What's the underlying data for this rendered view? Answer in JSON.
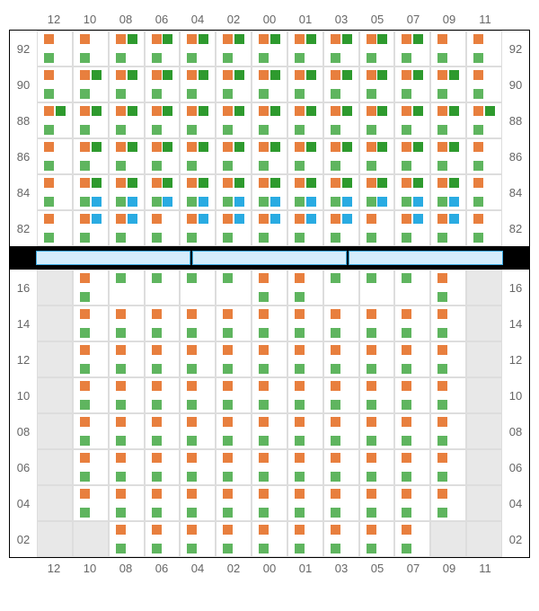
{
  "colors": {
    "orange": "#e87f3e",
    "green": "#5fb55f",
    "darkgreen": "#2e9a2e",
    "blue": "#29abe2",
    "cell_border": "#dddddd",
    "section_border": "#000000",
    "empty_bg": "#e8e8e8",
    "separator_fill": "#d4edfc",
    "separator_border": "#3ba9e0",
    "label_color": "#666666"
  },
  "column_labels": [
    "12",
    "10",
    "08",
    "06",
    "04",
    "02",
    "00",
    "01",
    "03",
    "05",
    "07",
    "09",
    "11"
  ],
  "top_section": {
    "row_labels": [
      "92",
      "90",
      "88",
      "86",
      "84",
      "82"
    ],
    "rows": [
      [
        {
          "tl": "orange",
          "bl": "green"
        },
        {
          "tl": "orange",
          "bl": "green"
        },
        {
          "tl": "orange",
          "tr": "darkgreen",
          "bl": "green"
        },
        {
          "tl": "orange",
          "tr": "darkgreen",
          "bl": "green"
        },
        {
          "tl": "orange",
          "tr": "darkgreen",
          "bl": "green"
        },
        {
          "tl": "orange",
          "tr": "darkgreen",
          "bl": "green"
        },
        {
          "tl": "orange",
          "tr": "darkgreen",
          "bl": "green"
        },
        {
          "tl": "orange",
          "tr": "darkgreen",
          "bl": "green"
        },
        {
          "tl": "orange",
          "tr": "darkgreen",
          "bl": "green"
        },
        {
          "tl": "orange",
          "tr": "darkgreen",
          "bl": "green"
        },
        {
          "tl": "orange",
          "tr": "darkgreen",
          "bl": "green"
        },
        {
          "tl": "orange",
          "bl": "green"
        },
        {
          "tl": "orange",
          "bl": "green"
        }
      ],
      [
        {
          "tl": "orange",
          "bl": "green"
        },
        {
          "tl": "orange",
          "tr": "darkgreen",
          "bl": "green"
        },
        {
          "tl": "orange",
          "tr": "darkgreen",
          "bl": "green"
        },
        {
          "tl": "orange",
          "tr": "darkgreen",
          "bl": "green"
        },
        {
          "tl": "orange",
          "tr": "darkgreen",
          "bl": "green"
        },
        {
          "tl": "orange",
          "tr": "darkgreen",
          "bl": "green"
        },
        {
          "tl": "orange",
          "tr": "darkgreen",
          "bl": "green"
        },
        {
          "tl": "orange",
          "tr": "darkgreen",
          "bl": "green"
        },
        {
          "tl": "orange",
          "tr": "darkgreen",
          "bl": "green"
        },
        {
          "tl": "orange",
          "tr": "darkgreen",
          "bl": "green"
        },
        {
          "tl": "orange",
          "tr": "darkgreen",
          "bl": "green"
        },
        {
          "tl": "orange",
          "tr": "darkgreen",
          "bl": "green"
        },
        {
          "tl": "orange",
          "bl": "green"
        }
      ],
      [
        {
          "tl": "orange",
          "tr": "darkgreen",
          "bl": "green"
        },
        {
          "tl": "orange",
          "tr": "darkgreen",
          "bl": "green"
        },
        {
          "tl": "orange",
          "tr": "darkgreen",
          "bl": "green"
        },
        {
          "tl": "orange",
          "tr": "darkgreen",
          "bl": "green"
        },
        {
          "tl": "orange",
          "tr": "darkgreen",
          "bl": "green"
        },
        {
          "tl": "orange",
          "tr": "darkgreen",
          "bl": "green"
        },
        {
          "tl": "orange",
          "tr": "darkgreen",
          "bl": "green"
        },
        {
          "tl": "orange",
          "tr": "darkgreen",
          "bl": "green"
        },
        {
          "tl": "orange",
          "tr": "darkgreen",
          "bl": "green"
        },
        {
          "tl": "orange",
          "tr": "darkgreen",
          "bl": "green"
        },
        {
          "tl": "orange",
          "tr": "darkgreen",
          "bl": "green"
        },
        {
          "tl": "orange",
          "tr": "darkgreen",
          "bl": "green"
        },
        {
          "tl": "orange",
          "tr": "darkgreen",
          "bl": "green"
        }
      ],
      [
        {
          "tl": "orange",
          "bl": "green"
        },
        {
          "tl": "orange",
          "tr": "darkgreen",
          "bl": "green"
        },
        {
          "tl": "orange",
          "tr": "darkgreen",
          "bl": "green"
        },
        {
          "tl": "orange",
          "tr": "darkgreen",
          "bl": "green"
        },
        {
          "tl": "orange",
          "tr": "darkgreen",
          "bl": "green"
        },
        {
          "tl": "orange",
          "tr": "darkgreen",
          "bl": "green"
        },
        {
          "tl": "orange",
          "tr": "darkgreen",
          "bl": "green"
        },
        {
          "tl": "orange",
          "tr": "darkgreen",
          "bl": "green"
        },
        {
          "tl": "orange",
          "tr": "darkgreen",
          "bl": "green"
        },
        {
          "tl": "orange",
          "tr": "darkgreen",
          "bl": "green"
        },
        {
          "tl": "orange",
          "tr": "darkgreen",
          "bl": "green"
        },
        {
          "tl": "orange",
          "tr": "darkgreen",
          "bl": "green"
        },
        {
          "tl": "orange",
          "bl": "green"
        }
      ],
      [
        {
          "tl": "orange",
          "bl": "green"
        },
        {
          "tl": "orange",
          "tr": "darkgreen",
          "bl": "green",
          "br": "blue"
        },
        {
          "tl": "orange",
          "tr": "darkgreen",
          "bl": "green",
          "br": "blue"
        },
        {
          "tl": "orange",
          "tr": "darkgreen",
          "bl": "green",
          "br": "blue"
        },
        {
          "tl": "orange",
          "tr": "darkgreen",
          "bl": "green",
          "br": "blue"
        },
        {
          "tl": "orange",
          "tr": "darkgreen",
          "bl": "green",
          "br": "blue"
        },
        {
          "tl": "orange",
          "tr": "darkgreen",
          "bl": "green",
          "br": "blue"
        },
        {
          "tl": "orange",
          "tr": "darkgreen",
          "bl": "green",
          "br": "blue"
        },
        {
          "tl": "orange",
          "tr": "darkgreen",
          "bl": "green",
          "br": "blue"
        },
        {
          "tl": "orange",
          "tr": "darkgreen",
          "bl": "green",
          "br": "blue"
        },
        {
          "tl": "orange",
          "tr": "darkgreen",
          "bl": "green",
          "br": "blue"
        },
        {
          "tl": "orange",
          "tr": "darkgreen",
          "bl": "green",
          "br": "blue"
        },
        {
          "tl": "orange",
          "bl": "green"
        }
      ],
      [
        {
          "tl": "orange",
          "bl": "green"
        },
        {
          "tl": "orange",
          "tr": "blue",
          "bl": "green"
        },
        {
          "tl": "orange",
          "tr": "blue",
          "bl": "green"
        },
        {
          "tl": "orange",
          "bl": "green"
        },
        {
          "tl": "orange",
          "tr": "blue",
          "bl": "green"
        },
        {
          "tl": "orange",
          "tr": "blue",
          "bl": "green"
        },
        {
          "tl": "orange",
          "tr": "blue",
          "bl": "green"
        },
        {
          "tl": "orange",
          "tr": "blue",
          "bl": "green"
        },
        {
          "tl": "orange",
          "tr": "blue",
          "bl": "green"
        },
        {
          "tl": "orange",
          "bl": "green"
        },
        {
          "tl": "orange",
          "tr": "blue",
          "bl": "green"
        },
        {
          "tl": "orange",
          "tr": "blue",
          "bl": "green"
        },
        {
          "tl": "orange",
          "bl": "green"
        }
      ]
    ]
  },
  "separator": {
    "segments": 3
  },
  "bottom_section": {
    "row_labels": [
      "16",
      "14",
      "12",
      "10",
      "08",
      "06",
      "04",
      "02"
    ],
    "rows": [
      [
        {
          "empty": true
        },
        {
          "tl": "orange",
          "bl": "green"
        },
        {
          "tl": "green"
        },
        {
          "tl": "green"
        },
        {
          "tl": "green"
        },
        {
          "tl": "green"
        },
        {
          "tl": "orange",
          "bl": "green"
        },
        {
          "tl": "orange",
          "bl": "green"
        },
        {
          "tl": "green"
        },
        {
          "tl": "green"
        },
        {
          "tl": "green"
        },
        {
          "tl": "orange",
          "bl": "green"
        },
        {
          "empty": true
        }
      ],
      [
        {
          "empty": true
        },
        {
          "tl": "orange",
          "bl": "green"
        },
        {
          "tl": "orange",
          "bl": "green"
        },
        {
          "tl": "orange",
          "bl": "green"
        },
        {
          "tl": "orange",
          "bl": "green"
        },
        {
          "tl": "orange",
          "bl": "green"
        },
        {
          "tl": "orange",
          "bl": "green"
        },
        {
          "tl": "orange",
          "bl": "green"
        },
        {
          "tl": "orange",
          "bl": "green"
        },
        {
          "tl": "orange",
          "bl": "green"
        },
        {
          "tl": "orange",
          "bl": "green"
        },
        {
          "tl": "orange",
          "bl": "green"
        },
        {
          "empty": true
        }
      ],
      [
        {
          "empty": true
        },
        {
          "tl": "orange",
          "bl": "green"
        },
        {
          "tl": "orange",
          "bl": "green"
        },
        {
          "tl": "orange",
          "bl": "green"
        },
        {
          "tl": "orange",
          "bl": "green"
        },
        {
          "tl": "orange",
          "bl": "green"
        },
        {
          "tl": "orange",
          "bl": "green"
        },
        {
          "tl": "orange",
          "bl": "green"
        },
        {
          "tl": "orange",
          "bl": "green"
        },
        {
          "tl": "orange",
          "bl": "green"
        },
        {
          "tl": "orange",
          "bl": "green"
        },
        {
          "tl": "orange",
          "bl": "green"
        },
        {
          "empty": true
        }
      ],
      [
        {
          "empty": true
        },
        {
          "tl": "orange",
          "bl": "green"
        },
        {
          "tl": "orange",
          "bl": "green"
        },
        {
          "tl": "orange",
          "bl": "green"
        },
        {
          "tl": "orange",
          "bl": "green"
        },
        {
          "tl": "orange",
          "bl": "green"
        },
        {
          "tl": "orange",
          "bl": "green"
        },
        {
          "tl": "orange",
          "bl": "green"
        },
        {
          "tl": "orange",
          "bl": "green"
        },
        {
          "tl": "orange",
          "bl": "green"
        },
        {
          "tl": "orange",
          "bl": "green"
        },
        {
          "tl": "orange",
          "bl": "green"
        },
        {
          "empty": true
        }
      ],
      [
        {
          "empty": true
        },
        {
          "tl": "orange",
          "bl": "green"
        },
        {
          "tl": "orange",
          "bl": "green"
        },
        {
          "tl": "orange",
          "bl": "green"
        },
        {
          "tl": "orange",
          "bl": "green"
        },
        {
          "tl": "orange",
          "bl": "green"
        },
        {
          "tl": "orange",
          "bl": "green"
        },
        {
          "tl": "orange",
          "bl": "green"
        },
        {
          "tl": "orange",
          "bl": "green"
        },
        {
          "tl": "orange",
          "bl": "green"
        },
        {
          "tl": "orange",
          "bl": "green"
        },
        {
          "tl": "orange",
          "bl": "green"
        },
        {
          "empty": true
        }
      ],
      [
        {
          "empty": true
        },
        {
          "tl": "orange",
          "bl": "green"
        },
        {
          "tl": "orange",
          "bl": "green"
        },
        {
          "tl": "orange",
          "bl": "green"
        },
        {
          "tl": "orange",
          "bl": "green"
        },
        {
          "tl": "orange",
          "bl": "green"
        },
        {
          "tl": "orange",
          "bl": "green"
        },
        {
          "tl": "orange",
          "bl": "green"
        },
        {
          "tl": "orange",
          "bl": "green"
        },
        {
          "tl": "orange",
          "bl": "green"
        },
        {
          "tl": "orange",
          "bl": "green"
        },
        {
          "tl": "orange",
          "bl": "green"
        },
        {
          "empty": true
        }
      ],
      [
        {
          "empty": true
        },
        {
          "tl": "orange",
          "bl": "green"
        },
        {
          "tl": "orange",
          "bl": "green"
        },
        {
          "tl": "orange",
          "bl": "green"
        },
        {
          "tl": "orange",
          "bl": "green"
        },
        {
          "tl": "orange",
          "bl": "green"
        },
        {
          "tl": "orange",
          "bl": "green"
        },
        {
          "tl": "orange",
          "bl": "green"
        },
        {
          "tl": "orange",
          "bl": "green"
        },
        {
          "tl": "orange",
          "bl": "green"
        },
        {
          "tl": "orange",
          "bl": "green"
        },
        {
          "tl": "orange",
          "bl": "green"
        },
        {
          "empty": true
        }
      ],
      [
        {
          "empty": true
        },
        {
          "empty": true
        },
        {
          "tl": "orange",
          "bl": "green"
        },
        {
          "tl": "orange",
          "bl": "green"
        },
        {
          "tl": "orange",
          "bl": "green"
        },
        {
          "tl": "orange",
          "bl": "green"
        },
        {
          "tl": "orange",
          "bl": "green"
        },
        {
          "tl": "orange",
          "bl": "green"
        },
        {
          "tl": "orange",
          "bl": "green"
        },
        {
          "tl": "orange",
          "bl": "green"
        },
        {
          "tl": "orange",
          "bl": "green"
        },
        {
          "empty": true
        },
        {
          "empty": true
        }
      ]
    ]
  }
}
